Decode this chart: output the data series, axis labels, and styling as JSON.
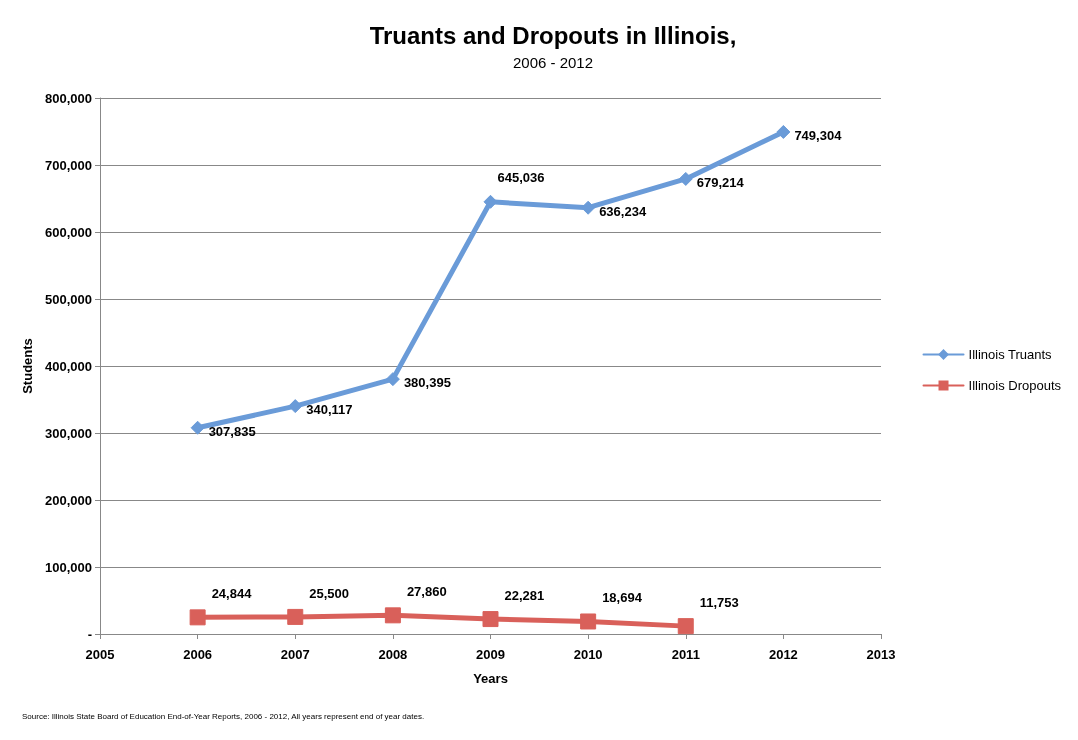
{
  "chart_data": {
    "type": "line",
    "title": "Truants and Dropouts in Illinois,",
    "subtitle": "2006 - 2012",
    "xlabel": "Years",
    "ylabel": "Students",
    "annotations": [
      "Source: Illinois State Board of Education End-of-Year Reports, 2006 - 2012, All years represent end of year dates."
    ],
    "series": [
      {
        "name": "Illinois Truants",
        "color": "#6a9bd8",
        "marker": "diamond",
        "x": [
          2006,
          2007,
          2008,
          2009,
          2010,
          2011,
          2012
        ],
        "values": [
          307835,
          340117,
          380395,
          645036,
          636234,
          679214,
          749304
        ],
        "value_labels": [
          "307,835",
          "340,117",
          "380,395",
          "645,036",
          "636,234",
          "679,214",
          "749,304"
        ]
      },
      {
        "name": "Illinois Dropouts",
        "color": "#d9605a",
        "marker": "square",
        "x": [
          2006,
          2007,
          2008,
          2009,
          2010,
          2011
        ],
        "values": [
          24844,
          25500,
          27860,
          22281,
          18694,
          11753
        ],
        "value_labels": [
          "24,844",
          "25,500",
          "27,860",
          "22,281",
          "18,694",
          "11,753"
        ]
      }
    ],
    "xlim": [
      2005,
      2013
    ],
    "xticks": [
      2005,
      2006,
      2007,
      2008,
      2009,
      2010,
      2011,
      2012,
      2013
    ],
    "ylim": [
      0,
      800000
    ],
    "yticks": [
      {
        "value": 0,
        "label": "-"
      },
      {
        "value": 100000,
        "label": "100,000"
      },
      {
        "value": 200000,
        "label": "200,000"
      },
      {
        "value": 300000,
        "label": "300,000"
      },
      {
        "value": 400000,
        "label": "400,000"
      },
      {
        "value": 500000,
        "label": "500,000"
      },
      {
        "value": 600000,
        "label": "600,000"
      },
      {
        "value": 700000,
        "label": "700,000"
      },
      {
        "value": 800000,
        "label": "800,000"
      }
    ],
    "grid": "y",
    "legend": "right",
    "line_style": "solid"
  }
}
